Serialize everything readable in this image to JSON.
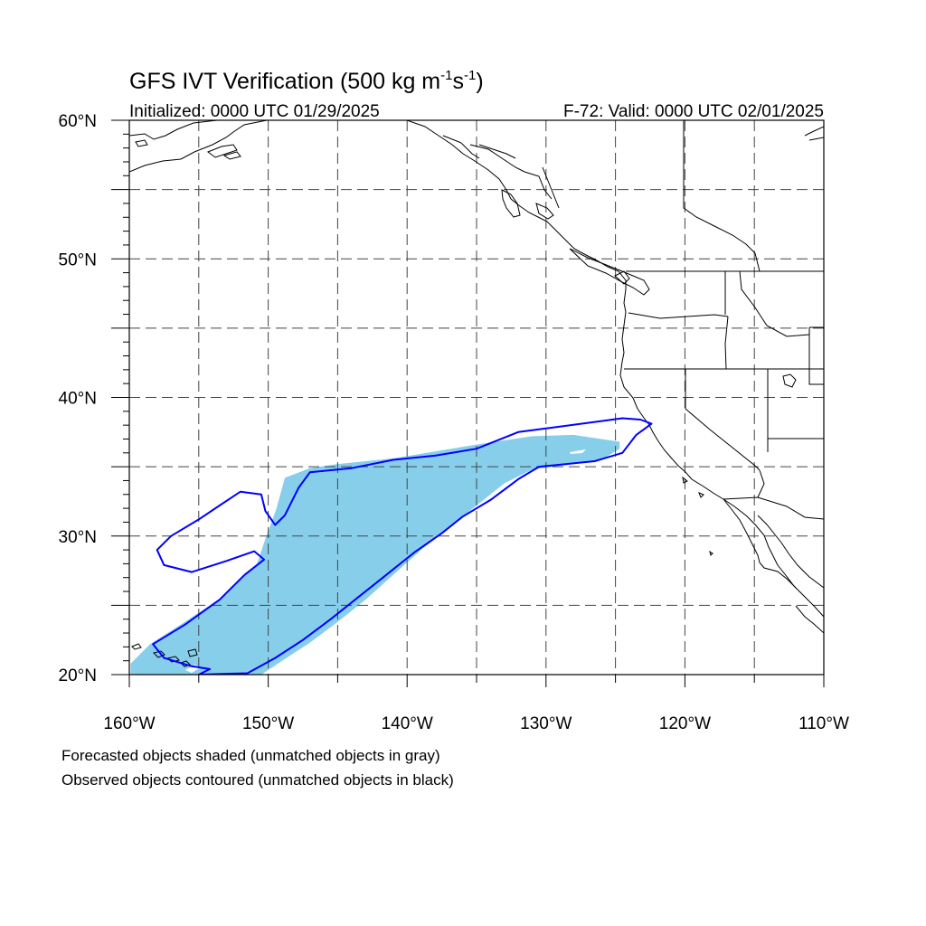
{
  "title": {
    "main": "GFS IVT Verification (500 kg m",
    "sup1": "-1",
    "mid": "s",
    "sup2": "-1",
    "end": ")"
  },
  "subtitle_left": "Initialized: 0000 UTC 01/29/2025",
  "subtitle_right": "F-72: Valid: 0000 UTC 02/01/2025",
  "map": {
    "lon_range": [
      -160,
      -110
    ],
    "lat_range": [
      20,
      60
    ],
    "x_tick_labels": [
      "160°W",
      "150°W",
      "140°W",
      "130°W",
      "120°W",
      "110°W"
    ],
    "y_tick_labels": [
      "20°N",
      "30°N",
      "40°N",
      "50°N",
      "60°N"
    ],
    "gridlines": "dashed every 5°",
    "forecast_fill_color": "#87CEEB",
    "observed_contour_color": "#0000FF",
    "forecast_object_shaded": [
      [
        -159.9,
        20.8
      ],
      [
        -158.5,
        22.2
      ],
      [
        -156.0,
        23.8
      ],
      [
        -153.0,
        25.8
      ],
      [
        -150.8,
        28.0
      ],
      [
        -150.2,
        29.8
      ],
      [
        -149.4,
        32.0
      ],
      [
        -148.8,
        34.2
      ],
      [
        -147.0,
        34.9
      ],
      [
        -145.0,
        35.2
      ],
      [
        -141.0,
        35.6
      ],
      [
        -138.0,
        36.1
      ],
      [
        -135.0,
        36.6
      ],
      [
        -131.0,
        37.2
      ],
      [
        -128.0,
        37.3
      ],
      [
        -124.7,
        36.8
      ],
      [
        -124.7,
        36.3
      ],
      [
        -126.0,
        35.5
      ],
      [
        -128.0,
        35.2
      ],
      [
        -131.0,
        34.8
      ],
      [
        -133.0,
        33.8
      ],
      [
        -135.0,
        32.2
      ],
      [
        -137.0,
        30.6
      ],
      [
        -139.0,
        29.0
      ],
      [
        -141.0,
        27.2
      ],
      [
        -143.0,
        25.4
      ],
      [
        -145.0,
        23.8
      ],
      [
        -147.0,
        22.3
      ],
      [
        -149.0,
        21.0
      ],
      [
        -150.5,
        20.0
      ],
      [
        -159.9,
        20.0
      ]
    ],
    "observed_object_contour": [
      [
        -158.3,
        22.2
      ],
      [
        -156.0,
        23.6
      ],
      [
        -153.5,
        25.4
      ],
      [
        -151.7,
        27.2
      ],
      [
        -150.3,
        28.3
      ],
      [
        -151.0,
        28.9
      ],
      [
        -153.0,
        28.2
      ],
      [
        -155.5,
        27.4
      ],
      [
        -157.5,
        27.9
      ],
      [
        -158.0,
        29.0
      ],
      [
        -157.0,
        30.0
      ],
      [
        -155.0,
        31.2
      ],
      [
        -153.5,
        32.2
      ],
      [
        -152.0,
        33.2
      ],
      [
        -150.5,
        33.0
      ],
      [
        -150.2,
        31.8
      ],
      [
        -149.5,
        30.8
      ],
      [
        -148.8,
        31.5
      ],
      [
        -147.8,
        33.5
      ],
      [
        -147.0,
        34.6
      ],
      [
        -144.0,
        34.9
      ],
      [
        -141.0,
        35.5
      ],
      [
        -138.0,
        35.8
      ],
      [
        -135.0,
        36.3
      ],
      [
        -132.0,
        37.5
      ],
      [
        -129.0,
        37.9
      ],
      [
        -126.0,
        38.3
      ],
      [
        -124.5,
        38.5
      ],
      [
        -123.2,
        38.4
      ],
      [
        -122.4,
        38.1
      ],
      [
        -123.5,
        37.3
      ],
      [
        -124.5,
        36.0
      ],
      [
        -126.5,
        35.4
      ],
      [
        -128.5,
        35.2
      ],
      [
        -130.5,
        35.0
      ],
      [
        -132.0,
        34.1
      ],
      [
        -134.0,
        32.6
      ],
      [
        -136.0,
        31.4
      ],
      [
        -137.5,
        30.2
      ],
      [
        -139.5,
        28.8
      ],
      [
        -141.5,
        27.2
      ],
      [
        -143.5,
        25.6
      ],
      [
        -145.5,
        24.0
      ],
      [
        -147.5,
        22.5
      ],
      [
        -149.5,
        21.2
      ],
      [
        -151.5,
        20.1
      ],
      [
        -155.0,
        20.0
      ],
      [
        -154.2,
        20.4
      ],
      [
        -155.5,
        20.6
      ],
      [
        -157.5,
        21.2
      ],
      [
        -158.3,
        22.2
      ]
    ]
  },
  "footnote_1": "Forecasted objects shaded (unmatched objects in gray)",
  "footnote_2": "Observed objects contoured (unmatched objects in black)"
}
